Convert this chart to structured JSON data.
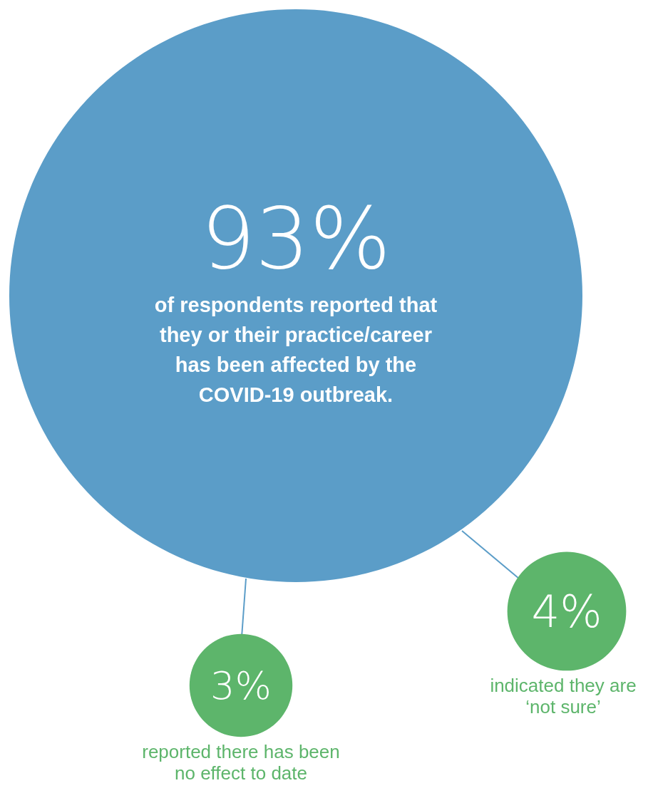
{
  "chart_data": {
    "type": "other",
    "categories": [
      "of respondents reported that they or their practice/career has been affected by the COVID-19 outbreak.",
      "indicated they are ‘not sure’",
      "reported there has been no effect to date"
    ],
    "values": [
      93,
      4,
      3
    ],
    "value_labels": [
      "93%",
      "4%",
      "3%"
    ],
    "colors": [
      "#5b9dc8",
      "#5db56b",
      "#5db56b"
    ]
  }
}
